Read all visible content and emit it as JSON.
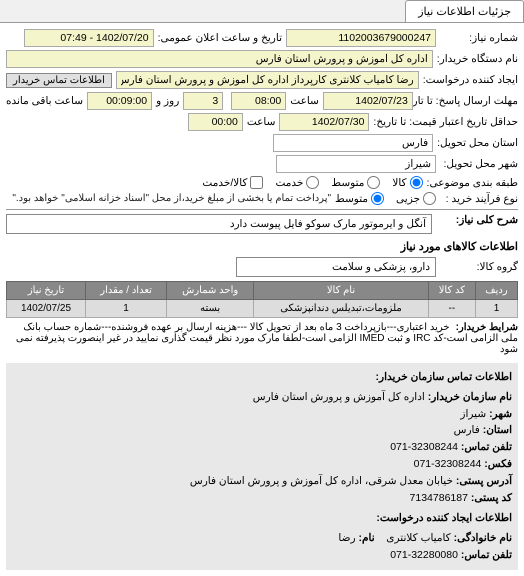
{
  "tab": {
    "label": "جزئیات اطلاعات نیاز"
  },
  "fields": {
    "req_no_lbl": "شماره نیاز:",
    "req_no": "1102003679000247",
    "pub_date_lbl": "تاریخ و ساعت اعلان عمومی:",
    "pub_date": "1402/07/20 - 07:49",
    "buyer_org_lbl": "نام دستگاه خریدار:",
    "buyer_org": "اداره کل آموزش و پرورش استان فارس",
    "creator_lbl": "ایجاد کننده درخواست:",
    "creator": "رضا کامیاب کلانتری کارپرداز اداره کل آموزش و پرورش استان فارس",
    "contact_btn": "اطلاعات تماس خریدار",
    "resp_until_lbl": "مهلت ارسال پاسخ: تا تاریخ:",
    "resp_date": "1402/07/23",
    "resp_time_lbl": "ساعت",
    "resp_time": "08:00",
    "days_lbl": "روز و",
    "days": "3",
    "remain_lbl": "ساعت باقی مانده",
    "remain": "00:09:00",
    "valid_until_lbl": "حداقل تاریخ اعتبار قیمت: تا تاریخ:",
    "valid_date": "1402/07/30",
    "valid_time_lbl": "ساعت",
    "valid_time": "00:00",
    "province_lbl": "استان محل تحویل:",
    "province": "فارس",
    "city_lbl": "شهر محل تحویل:",
    "city": "شیراز",
    "pkg_lbl": "طبقه بندی موضوعی:",
    "pkg_all": "کالا",
    "pkg_mid": "متوسط",
    "pkg_srv": "خدمت",
    "pay_cash": "کالا/خدمت",
    "proc_lbl": "نوع فرآیند خرید :",
    "proc_a": "جزیی",
    "proc_b": "متوسط",
    "proc_note": "\"پرداخت تمام یا بخشی از مبلغ خرید،از محل \"اسناد خزانه اسلامی\" خواهد بود.\"",
    "desc_lbl": "شرح کلی نیاز:",
    "desc": "آنگل و ایرموتور مارک سوکو فایل پیوست دارد",
    "items_hdr": "اطلاعات کالاهای مورد نیاز",
    "group_lbl": "گروه کالا:",
    "group": "دارو، پزشکی و سلامت"
  },
  "table": {
    "cols": [
      "ردیف",
      "کد کالا",
      "نام کالا",
      "واحد شمارش",
      "تعداد / مقدار",
      "تاریخ نیاز"
    ],
    "rows": [
      [
        "1",
        "--",
        "ملزومات،تبدیلس دندانپزشکی",
        "بسته",
        "1",
        "1402/07/25"
      ]
    ]
  },
  "buyer_terms": {
    "lbl": "شرایط خریدار:",
    "text": "خرید اعتباری---بازپرداخت 3 ماه بعد از تحویل کالا ---هزینه ارسال بر عهده فروشنده---شماره حساب بانک ملی الزامی است-کد IRC و ثبت IMED الزامی است-لطفا مارک مورد نظر قیمت گذاری نمایید در غیر اینصورت پذیرفته نمی شود"
  },
  "contacts": {
    "hdr": "اطلاعات تماس سازمان خریدار:",
    "org_lbl": "نام سازمان خریدار:",
    "org": "اداره کل آموزش و پرورش استان فارس",
    "city_lbl": "شهر:",
    "city": "شیراز",
    "prov_lbl": "استان:",
    "prov": "فارس",
    "tel_lbl": "تلفن تماس:",
    "tel": "32308244-071",
    "fax_lbl": "فکس:",
    "fax": "32308244-071",
    "addr_lbl": "آدرس پستی:",
    "addr": "خیابان معدل شرقی، اداره کل آموزش و پرورش استان فارس",
    "zip_lbl": "کد پستی:",
    "zip": "7134786187",
    "creator_hdr": "اطلاعات ایجاد کننده درخواست:",
    "fam_lbl": "نام خانوادگی:",
    "fam": "کامیاب کلانتری",
    "name_lbl": "نام:",
    "name": "رضا",
    "ctel_lbl": "تلفن تماس:",
    "ctel": "32280080-071"
  }
}
